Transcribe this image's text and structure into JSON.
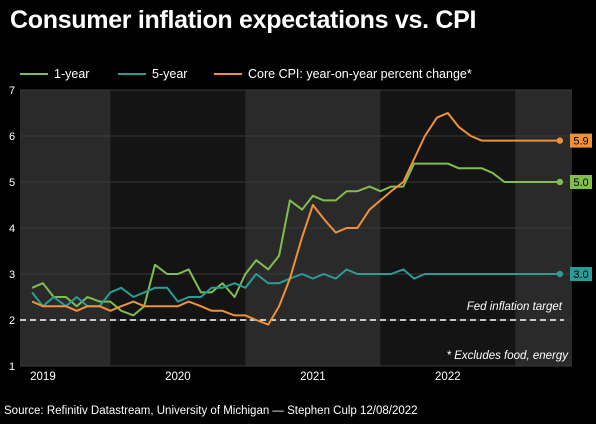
{
  "title": "Consumer inflation expectations vs. CPI",
  "source": "Source: Refinitiv Datastream, University of Michigan — Stephen Culp 12/08/2022",
  "chart_data": {
    "type": "line",
    "y_ticks": [
      1,
      2,
      3,
      4,
      5,
      6,
      7
    ],
    "ylim": [
      1,
      7
    ],
    "xlim": [
      2018.83,
      2022.92
    ],
    "x_ticks": [
      {
        "label": "2019",
        "value": 2019.0
      },
      {
        "label": "2020",
        "value": 2020.0
      },
      {
        "label": "2021",
        "value": 2021.0
      },
      {
        "label": "2022",
        "value": 2022.0
      }
    ],
    "year_bands": [
      {
        "start": 2018.83,
        "end": 2019.5
      },
      {
        "start": 2020.5,
        "end": 2021.5
      },
      {
        "start": 2022.5,
        "end": 2022.92
      }
    ],
    "legend_position": "top",
    "reference_line": {
      "value": 2,
      "label": "Fed inflation target",
      "color": "#ffffff"
    },
    "footnote": "* Excludes food, energy",
    "series": [
      {
        "name": "1-year",
        "color": "#7fbe4f",
        "end_label": "5.0",
        "x": [
          2018.92,
          2019.0,
          2019.08,
          2019.17,
          2019.25,
          2019.33,
          2019.42,
          2019.5,
          2019.58,
          2019.67,
          2019.75,
          2019.83,
          2019.92,
          2020.0,
          2020.08,
          2020.17,
          2020.25,
          2020.33,
          2020.42,
          2020.5,
          2020.58,
          2020.67,
          2020.75,
          2020.83,
          2020.92,
          2021.0,
          2021.08,
          2021.17,
          2021.25,
          2021.33,
          2021.42,
          2021.5,
          2021.58,
          2021.67,
          2021.75,
          2021.83,
          2021.92,
          2022.0,
          2022.08,
          2022.17,
          2022.25,
          2022.33,
          2022.42,
          2022.5,
          2022.58,
          2022.67,
          2022.75,
          2022.83
        ],
        "values": [
          2.7,
          2.8,
          2.5,
          2.5,
          2.3,
          2.5,
          2.4,
          2.4,
          2.2,
          2.1,
          2.3,
          3.2,
          3.0,
          3.0,
          3.1,
          2.6,
          2.6,
          2.8,
          2.5,
          3.0,
          3.3,
          3.1,
          3.4,
          4.6,
          4.4,
          4.7,
          4.6,
          4.6,
          4.8,
          4.8,
          4.9,
          4.8,
          4.9,
          4.9,
          5.4,
          5.4,
          5.4,
          5.4,
          5.3,
          5.3,
          5.3,
          5.2,
          5.0,
          5.0,
          5.0,
          5.0,
          5.0,
          5.0
        ]
      },
      {
        "name": "5-year",
        "color": "#2b9b96",
        "end_label": "3.0",
        "x": [
          2018.92,
          2019.0,
          2019.08,
          2019.17,
          2019.25,
          2019.33,
          2019.42,
          2019.5,
          2019.58,
          2019.67,
          2019.75,
          2019.83,
          2019.92,
          2020.0,
          2020.08,
          2020.17,
          2020.25,
          2020.33,
          2020.42,
          2020.5,
          2020.58,
          2020.67,
          2020.75,
          2020.83,
          2020.92,
          2021.0,
          2021.08,
          2021.17,
          2021.25,
          2021.33,
          2021.42,
          2021.5,
          2021.58,
          2021.67,
          2021.75,
          2021.83,
          2021.92,
          2022.0,
          2022.08,
          2022.17,
          2022.25,
          2022.33,
          2022.42,
          2022.5,
          2022.58,
          2022.67,
          2022.75,
          2022.83
        ],
        "values": [
          2.6,
          2.3,
          2.5,
          2.3,
          2.5,
          2.3,
          2.3,
          2.6,
          2.7,
          2.5,
          2.6,
          2.7,
          2.7,
          2.4,
          2.5,
          2.5,
          2.7,
          2.7,
          2.8,
          2.7,
          3.0,
          2.8,
          2.8,
          2.9,
          3.0,
          2.9,
          3.0,
          2.9,
          3.1,
          3.0,
          3.0,
          3.0,
          3.0,
          3.1,
          2.9,
          3.0,
          3.0,
          3.0,
          3.0,
          3.0,
          3.0,
          3.0,
          3.0,
          3.0,
          3.0,
          3.0,
          3.0,
          3.0
        ]
      },
      {
        "name": "Core CPI: year-on-year percent change*",
        "color": "#f0913a",
        "end_label": "5.9",
        "x": [
          2018.92,
          2019.0,
          2019.08,
          2019.17,
          2019.25,
          2019.33,
          2019.42,
          2019.5,
          2019.58,
          2019.67,
          2019.75,
          2019.83,
          2019.92,
          2020.0,
          2020.08,
          2020.17,
          2020.25,
          2020.33,
          2020.42,
          2020.5,
          2020.58,
          2020.67,
          2020.75,
          2020.83,
          2020.92,
          2021.0,
          2021.08,
          2021.17,
          2021.25,
          2021.33,
          2021.42,
          2021.5,
          2021.58,
          2021.67,
          2021.75,
          2021.83,
          2021.92,
          2022.0,
          2022.08,
          2022.17,
          2022.25,
          2022.33,
          2022.42,
          2022.5,
          2022.58,
          2022.67,
          2022.75,
          2022.83
        ],
        "values": [
          2.4,
          2.3,
          2.3,
          2.3,
          2.2,
          2.3,
          2.3,
          2.2,
          2.3,
          2.4,
          2.3,
          2.3,
          2.3,
          2.3,
          2.4,
          2.3,
          2.2,
          2.2,
          2.1,
          2.1,
          2.0,
          1.9,
          2.3,
          2.9,
          3.8,
          4.5,
          4.2,
          3.9,
          4.0,
          4.0,
          4.4,
          4.6,
          4.8,
          5.0,
          5.5,
          6.0,
          6.4,
          6.5,
          6.2,
          6.0,
          5.9,
          5.9,
          5.9,
          5.9,
          5.9,
          5.9,
          5.9,
          5.9
        ]
      }
    ]
  }
}
